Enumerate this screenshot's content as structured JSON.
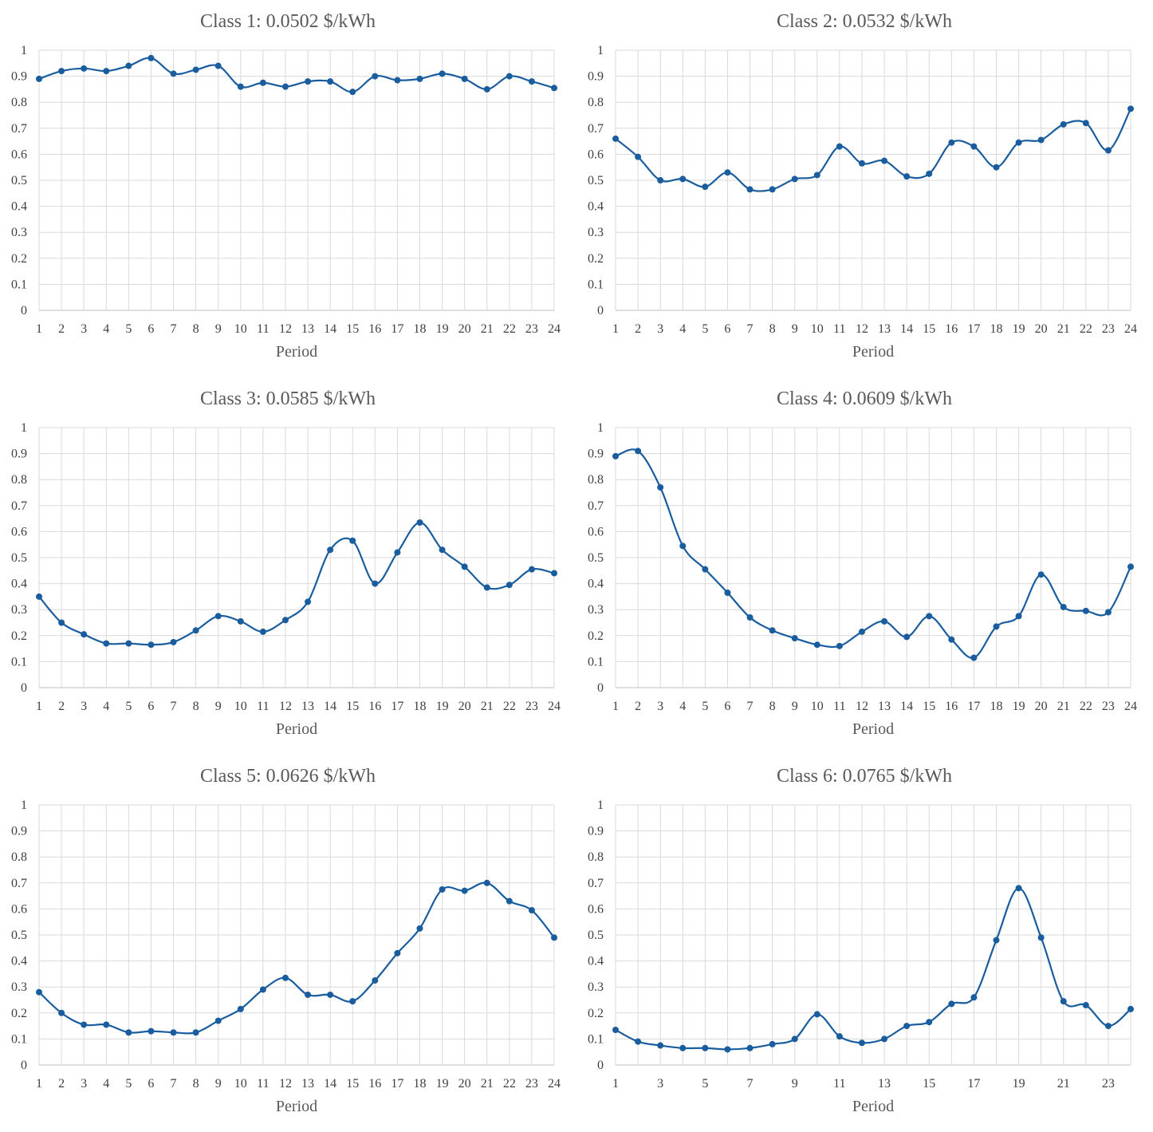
{
  "chart_data": [
    {
      "type": "line",
      "title": "Class 1: 0.0502 $/kWh",
      "xlabel": "Period",
      "ylabel": "",
      "ylim": [
        0,
        1
      ],
      "grid": true,
      "x": [
        1,
        2,
        3,
        4,
        5,
        6,
        7,
        8,
        9,
        10,
        11,
        12,
        13,
        14,
        15,
        16,
        17,
        18,
        19,
        20,
        21,
        22,
        23,
        24
      ],
      "xticks": [
        "1",
        "2",
        "3",
        "4",
        "5",
        "6",
        "7",
        "8",
        "9",
        "10",
        "11",
        "12",
        "13",
        "14",
        "15",
        "16",
        "17",
        "18",
        "19",
        "20",
        "21",
        "22",
        "23",
        "24"
      ],
      "yticks": [
        "0",
        "0.1",
        "0.2",
        "0.3",
        "0.4",
        "0.5",
        "0.6",
        "0.7",
        "0.8",
        "0.9",
        "1"
      ],
      "values": [
        0.89,
        0.92,
        0.93,
        0.92,
        0.94,
        0.97,
        0.91,
        0.925,
        0.94,
        0.86,
        0.875,
        0.86,
        0.88,
        0.88,
        0.84,
        0.9,
        0.885,
        0.89,
        0.91,
        0.89,
        0.85,
        0.9,
        0.88,
        0.855
      ]
    },
    {
      "type": "line",
      "title": "Class 2: 0.0532 $/kWh",
      "xlabel": "Period",
      "ylabel": "",
      "ylim": [
        0,
        1
      ],
      "grid": true,
      "x": [
        1,
        2,
        3,
        4,
        5,
        6,
        7,
        8,
        9,
        10,
        11,
        12,
        13,
        14,
        15,
        16,
        17,
        18,
        19,
        20,
        21,
        22,
        23,
        24
      ],
      "xticks": [
        "1",
        "2",
        "3",
        "4",
        "5",
        "6",
        "7",
        "8",
        "9",
        "10",
        "11",
        "12",
        "13",
        "14",
        "15",
        "16",
        "17",
        "18",
        "19",
        "20",
        "21",
        "22",
        "23",
        "24"
      ],
      "yticks": [
        "0",
        "0.1",
        "0.2",
        "0.3",
        "0.4",
        "0.5",
        "0.6",
        "0.7",
        "0.8",
        "0.9",
        "1"
      ],
      "values": [
        0.66,
        0.59,
        0.5,
        0.505,
        0.475,
        0.53,
        0.465,
        0.465,
        0.505,
        0.52,
        0.63,
        0.565,
        0.575,
        0.515,
        0.525,
        0.645,
        0.63,
        0.55,
        0.645,
        0.655,
        0.715,
        0.72,
        0.615,
        0.775
      ]
    },
    {
      "type": "line",
      "title": "Class 3: 0.0585 $/kWh",
      "xlabel": "Period",
      "ylabel": "",
      "ylim": [
        0,
        1
      ],
      "grid": true,
      "x": [
        1,
        2,
        3,
        4,
        5,
        6,
        7,
        8,
        9,
        10,
        11,
        12,
        13,
        14,
        15,
        16,
        17,
        18,
        19,
        20,
        21,
        22,
        23,
        24
      ],
      "xticks": [
        "1",
        "2",
        "3",
        "4",
        "5",
        "6",
        "7",
        "8",
        "9",
        "10",
        "11",
        "12",
        "13",
        "14",
        "15",
        "16",
        "17",
        "18",
        "19",
        "20",
        "21",
        "22",
        "23",
        "24"
      ],
      "yticks": [
        "0",
        "0.1",
        "0.2",
        "0.3",
        "0.4",
        "0.5",
        "0.6",
        "0.7",
        "0.8",
        "0.9",
        "1"
      ],
      "values": [
        0.35,
        0.25,
        0.205,
        0.17,
        0.17,
        0.165,
        0.175,
        0.22,
        0.275,
        0.255,
        0.215,
        0.26,
        0.33,
        0.53,
        0.565,
        0.4,
        0.52,
        0.635,
        0.53,
        0.465,
        0.385,
        0.395,
        0.455,
        0.44
      ]
    },
    {
      "type": "line",
      "title": "Class 4: 0.0609 $/kWh",
      "xlabel": "Period",
      "ylabel": "",
      "ylim": [
        0,
        1
      ],
      "grid": true,
      "x": [
        1,
        2,
        3,
        4,
        5,
        6,
        7,
        8,
        9,
        10,
        11,
        12,
        13,
        14,
        15,
        16,
        17,
        18,
        19,
        20,
        21,
        22,
        23,
        24
      ],
      "xticks": [
        "1",
        "2",
        "3",
        "4",
        "5",
        "6",
        "7",
        "8",
        "9",
        "10",
        "11",
        "12",
        "13",
        "14",
        "15",
        "16",
        "17",
        "18",
        "19",
        "20",
        "21",
        "22",
        "23",
        "24"
      ],
      "yticks": [
        "0",
        "0.1",
        "0.2",
        "0.3",
        "0.4",
        "0.5",
        "0.6",
        "0.7",
        "0.8",
        "0.9",
        "1"
      ],
      "values": [
        0.89,
        0.91,
        0.77,
        0.545,
        0.455,
        0.365,
        0.27,
        0.22,
        0.19,
        0.165,
        0.16,
        0.215,
        0.255,
        0.195,
        0.275,
        0.185,
        0.115,
        0.235,
        0.275,
        0.435,
        0.31,
        0.295,
        0.29,
        0.465
      ]
    },
    {
      "type": "line",
      "title": "Class 5: 0.0626 $/kWh",
      "xlabel": "Period",
      "ylabel": "",
      "ylim": [
        0,
        1
      ],
      "grid": true,
      "x": [
        1,
        2,
        3,
        4,
        5,
        6,
        7,
        8,
        9,
        10,
        11,
        12,
        13,
        14,
        15,
        16,
        17,
        18,
        19,
        20,
        21,
        22,
        23,
        24
      ],
      "xticks": [
        "1",
        "2",
        "3",
        "4",
        "5",
        "6",
        "7",
        "8",
        "9",
        "10",
        "11",
        "12",
        "13",
        "14",
        "15",
        "16",
        "17",
        "18",
        "19",
        "20",
        "21",
        "22",
        "23",
        "24"
      ],
      "yticks": [
        "0",
        "0.1",
        "0.2",
        "0.3",
        "0.4",
        "0.5",
        "0.6",
        "0.7",
        "0.8",
        "0.9",
        "1"
      ],
      "values": [
        0.28,
        0.2,
        0.155,
        0.155,
        0.125,
        0.13,
        0.125,
        0.125,
        0.17,
        0.215,
        0.29,
        0.335,
        0.27,
        0.27,
        0.245,
        0.325,
        0.43,
        0.525,
        0.675,
        0.67,
        0.7,
        0.63,
        0.595,
        0.49
      ]
    },
    {
      "type": "line",
      "title": "Class 6: 0.0765 $/kWh",
      "xlabel": "Period",
      "ylabel": "",
      "ylim": [
        0,
        1
      ],
      "grid": true,
      "x": [
        1,
        2,
        3,
        4,
        5,
        6,
        7,
        8,
        9,
        10,
        11,
        12,
        13,
        14,
        15,
        16,
        17,
        18,
        19,
        20,
        21,
        22,
        23,
        24
      ],
      "xticks": [
        "1",
        "",
        "3",
        "",
        "5",
        "",
        "7",
        "",
        "9",
        "",
        "11",
        "",
        "13",
        "",
        "15",
        "",
        "17",
        "",
        "19",
        "",
        "21",
        "",
        "23",
        ""
      ],
      "yticks": [
        "0",
        "0.1",
        "0.2",
        "0.3",
        "0.4",
        "0.5",
        "0.6",
        "0.7",
        "0.8",
        "0.9",
        "1"
      ],
      "values": [
        0.135,
        0.09,
        0.075,
        0.065,
        0.065,
        0.06,
        0.065,
        0.08,
        0.1,
        0.195,
        0.11,
        0.085,
        0.1,
        0.15,
        0.165,
        0.235,
        0.26,
        0.48,
        0.68,
        0.49,
        0.245,
        0.23,
        0.15,
        0.215
      ]
    }
  ],
  "colors": {
    "line": "#1a5d9e",
    "grid": "#d9d9d9",
    "axis": "#bfbfbf"
  }
}
